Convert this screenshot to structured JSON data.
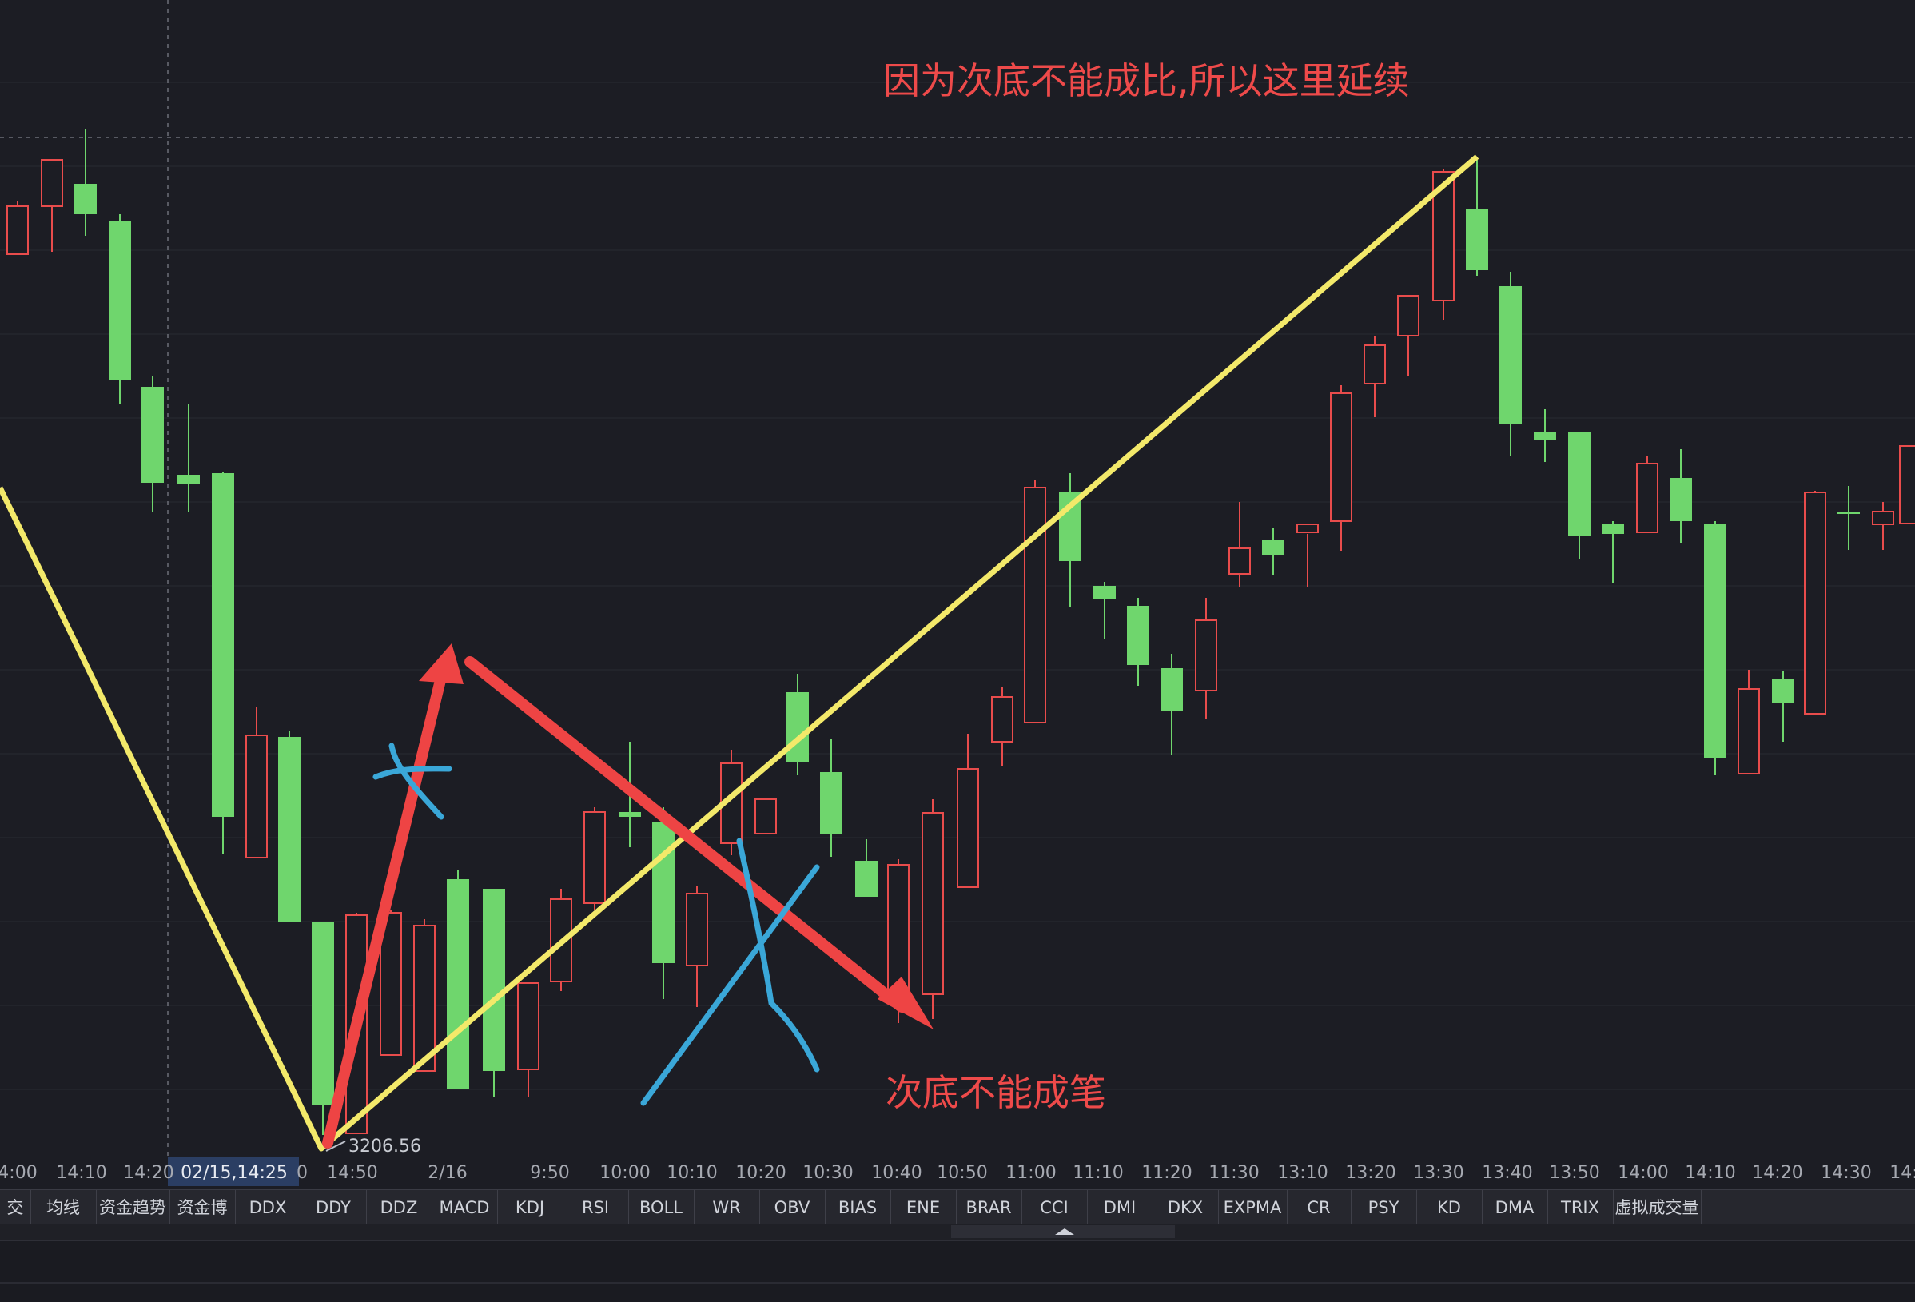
{
  "chart_data": {
    "type": "candlestick",
    "time_labels": [
      "4:00",
      "14:10",
      "14:20",
      "02/15,14:25",
      "0",
      "14:50",
      "2/16",
      "9:50",
      "10:00",
      "10:10",
      "10:20",
      "10:30",
      "10:40",
      "10:50",
      "11:00",
      "11:10",
      "11:20",
      "11:30",
      "13:10",
      "13:20",
      "13:30",
      "13:40",
      "13:50",
      "14:00",
      "14:10",
      "14:20",
      "14:30",
      "14:"
    ],
    "crosshair_label": "02/15,14:25",
    "low_marker": "3206.56",
    "annotations": [
      {
        "text": "因为次底不能成比,所以这里延续",
        "color": "#ee4a4a"
      },
      {
        "text": "次底不能成笔",
        "color": "#ee4a4a"
      }
    ],
    "colors": {
      "up": "#e84c4c",
      "down": "#6fd66d",
      "background": "#1c1d24",
      "pen": "#f3e96a",
      "arrow": "#ee4444",
      "cross": "#3aa7d8"
    }
  },
  "toolbar": {
    "tabs": [
      "交量",
      "均线",
      "资金趋势",
      "资金博弈",
      "DDX",
      "DDY",
      "DDZ",
      "MACD",
      "KDJ",
      "RSI",
      "BOLL",
      "WR",
      "OBV",
      "BIAS",
      "ENE",
      "BRAR",
      "CCI",
      "DMI",
      "DKX",
      "EXPMA",
      "CR",
      "PSY",
      "KD",
      "DMA",
      "TRIX",
      "虚拟成交量"
    ]
  }
}
